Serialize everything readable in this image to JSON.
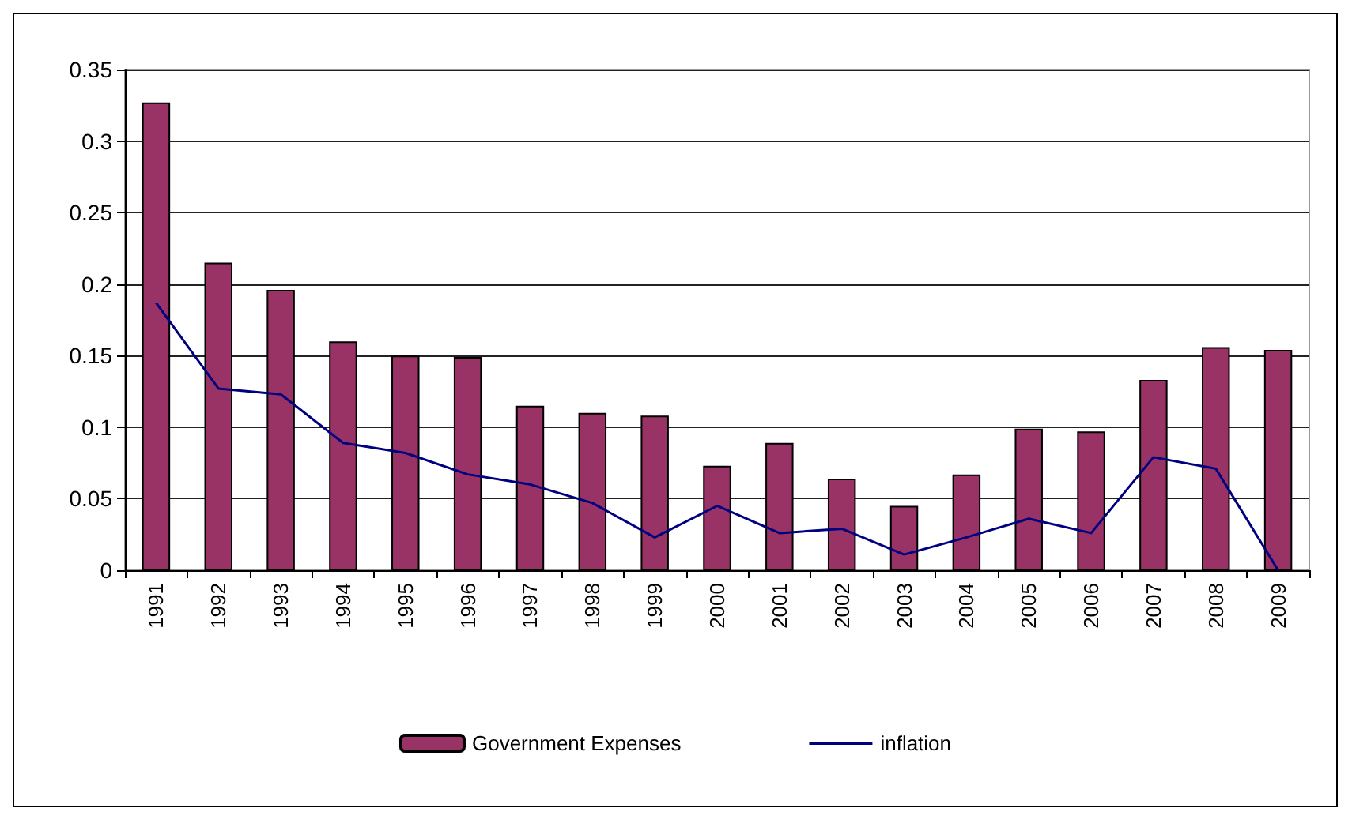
{
  "chart_data": {
    "type": "bar",
    "categories": [
      "1991",
      "1992",
      "1993",
      "1994",
      "1995",
      "1996",
      "1997",
      "1998",
      "1999",
      "2000",
      "2001",
      "2002",
      "2003",
      "2004",
      "2005",
      "2006",
      "2007",
      "2008",
      "2009"
    ],
    "series": [
      {
        "name": "Government Expenses",
        "color": "#993366",
        "values": [
          0.327,
          0.215,
          0.196,
          0.16,
          0.15,
          0.149,
          0.115,
          0.11,
          0.108,
          0.073,
          0.089,
          0.064,
          0.045,
          0.067,
          0.099,
          0.097,
          0.133,
          0.156,
          0.154
        ]
      },
      {
        "name": "inflation",
        "type": "line",
        "color": "#000080",
        "values": [
          0.187,
          0.127,
          0.123,
          0.089,
          0.082,
          0.067,
          0.06,
          0.047,
          0.023,
          0.045,
          0.026,
          0.029,
          0.011,
          0.023,
          0.036,
          0.026,
          0.079,
          0.071,
          0
        ]
      }
    ],
    "ylim": [
      0,
      0.35
    ],
    "yticks": [
      0,
      0.05,
      0.1,
      0.15,
      0.2,
      0.25,
      0.3,
      0.35
    ],
    "grid": "y",
    "legend": "bottom",
    "marker": "none",
    "line_style": "solid"
  }
}
